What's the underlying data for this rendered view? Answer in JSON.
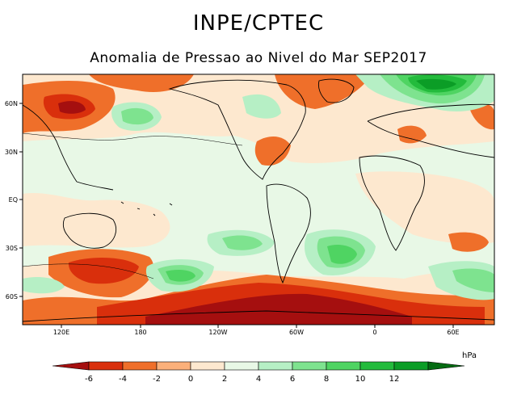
{
  "header": {
    "title": "INPE/CPTEC",
    "subtitle": "Anomalia de Pressao ao Nivel do Mar SEP2017"
  },
  "axes": {
    "lat_labels": [
      "60N",
      "30N",
      "EQ",
      "30S",
      "60S"
    ],
    "lon_labels": [
      "120E",
      "180",
      "120W",
      "60W",
      "0",
      "60E"
    ]
  },
  "colorbar": {
    "unit": "hPa",
    "labels": [
      "-6",
      "-4",
      "-2",
      "0",
      "2",
      "4",
      "6",
      "8",
      "10",
      "12"
    ],
    "colors": [
      "#a50f0f",
      "#d92f0c",
      "#ef6f2a",
      "#fbb07a",
      "#fde8cf",
      "#e8f8e6",
      "#b6efc5",
      "#7ee38f",
      "#4fd462",
      "#23bb3c",
      "#0b9d26",
      "#046b12"
    ]
  }
}
